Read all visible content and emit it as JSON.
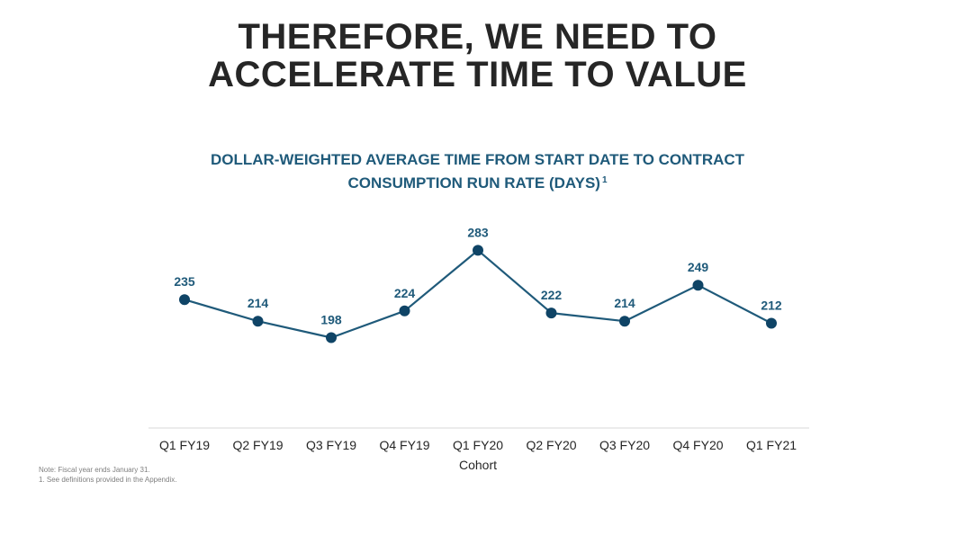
{
  "slide": {
    "title_line1": "THEREFORE, WE NEED TO",
    "title_line2": "ACCELERATE TIME TO VALUE"
  },
  "footnotes": {
    "note": "Note: Fiscal year ends January 31.",
    "ref": "1. See definitions provided in the Appendix."
  },
  "colors": {
    "title": "#262626",
    "accent": "#1f5a7a",
    "line": "#1f5a7a",
    "marker": "#0f4466",
    "axis_text": "#262626"
  },
  "chart_data": {
    "type": "line",
    "title_line1": "DOLLAR-WEIGHTED AVERAGE TIME FROM START DATE TO CONTRACT",
    "title_line2": "CONSUMPTION RUN RATE (DAYS)",
    "title_footnote": "1",
    "xlabel": "Cohort",
    "ylabel": "",
    "categories": [
      "Q1 FY19",
      "Q2 FY19",
      "Q3 FY19",
      "Q4 FY19",
      "Q1 FY20",
      "Q2 FY20",
      "Q3 FY20",
      "Q4 FY20",
      "Q1 FY21"
    ],
    "series": [
      {
        "values": [
          235,
          214,
          198,
          224,
          283,
          222,
          214,
          249,
          212
        ]
      }
    ],
    "data_labels": [
      "235",
      "214",
      "198",
      "224",
      "283",
      "222",
      "214",
      "249",
      "212"
    ],
    "ylim": [
      110,
      300
    ],
    "grid": false,
    "legend": "none"
  }
}
